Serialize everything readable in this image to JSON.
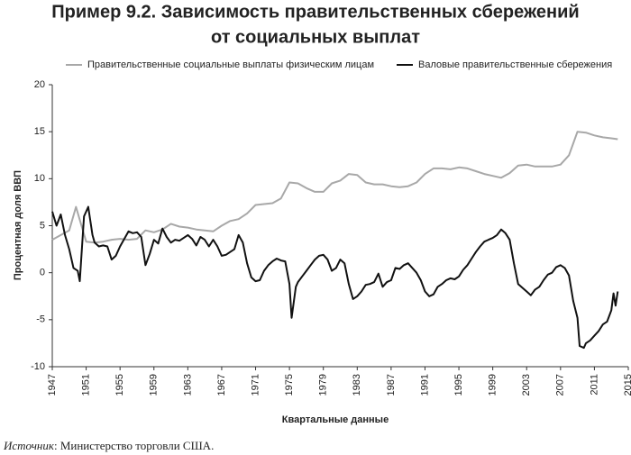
{
  "chart_data": {
    "type": "line",
    "title": [
      "Пример 9.2. Зависимость правительственных сбережений",
      "от социальных выплат"
    ],
    "ylabel": "Процентная доля ВВП",
    "xlabel": "Квартальные данные",
    "source_label": "Источник",
    "source_text": ": Министерство торговли США.",
    "xlim": [
      1947,
      2015
    ],
    "xticks": [
      1947,
      1951,
      1955,
      1959,
      1963,
      1967,
      1971,
      1975,
      1979,
      1983,
      1987,
      1991,
      1995,
      1999,
      2003,
      2007,
      2011,
      2015
    ],
    "ylim": [
      -10,
      20
    ],
    "yticks": [
      -10,
      -5,
      0,
      5,
      10,
      15,
      20
    ],
    "grid": false,
    "legend": "top",
    "series": [
      {
        "name": "Правительственные социальные выплаты физическим лицам",
        "color": "#a8a8a8",
        "x": [
          1947,
          1948,
          1949,
          1949.8,
          1951,
          1952,
          1953,
          1954,
          1955,
          1956,
          1957,
          1958,
          1959,
          1960,
          1961,
          1962,
          1963,
          1964,
          1965,
          1966,
          1967,
          1968,
          1969,
          1970,
          1971,
          1972,
          1973,
          1974,
          1975,
          1976,
          1977,
          1978,
          1979,
          1980,
          1981,
          1982,
          1983,
          1984,
          1985,
          1986,
          1987,
          1988,
          1989,
          1990,
          1991,
          1992,
          1993,
          1994,
          1995,
          1996,
          1997,
          1998,
          1999,
          2000,
          2001,
          2002,
          2003,
          2004,
          2005,
          2006,
          2007,
          2008,
          2009,
          2010,
          2011,
          2012,
          2013,
          2013.75
        ],
        "values": [
          3.5,
          4.0,
          4.5,
          7.0,
          3.3,
          3.2,
          3.3,
          3.5,
          3.6,
          3.5,
          3.6,
          4.5,
          4.3,
          4.6,
          5.2,
          4.9,
          4.8,
          4.6,
          4.5,
          4.4,
          5.0,
          5.5,
          5.7,
          6.3,
          7.2,
          7.3,
          7.4,
          7.9,
          9.6,
          9.5,
          9.0,
          8.6,
          8.6,
          9.5,
          9.8,
          10.5,
          10.4,
          9.6,
          9.4,
          9.4,
          9.2,
          9.1,
          9.2,
          9.6,
          10.5,
          11.1,
          11.1,
          11.0,
          11.2,
          11.1,
          10.8,
          10.5,
          10.3,
          10.1,
          10.6,
          11.4,
          11.5,
          11.3,
          11.3,
          11.3,
          11.5,
          12.5,
          15.0,
          14.9,
          14.6,
          14.4,
          14.3,
          14.2
        ]
      },
      {
        "name": "Валовые правительственные сбережения",
        "color": "#111111",
        "x": [
          1947,
          1947.5,
          1948,
          1948.5,
          1949,
          1949.5,
          1950,
          1950.25,
          1950.75,
          1951.25,
          1951.75,
          1952,
          1952.5,
          1953,
          1953.5,
          1954,
          1954.5,
          1955,
          1955.5,
          1956,
          1956.5,
          1957,
          1957.5,
          1958,
          1958.5,
          1959,
          1959.5,
          1960,
          1960.5,
          1961,
          1961.5,
          1962,
          1962.5,
          1963,
          1963.5,
          1964,
          1964.5,
          1965,
          1965.5,
          1966,
          1966.5,
          1967,
          1967.5,
          1968,
          1968.5,
          1969,
          1969.5,
          1970,
          1970.5,
          1971,
          1971.5,
          1972,
          1972.5,
          1973,
          1973.5,
          1974,
          1974.5,
          1975,
          1975.25,
          1975.75,
          1976,
          1976.5,
          1977,
          1977.5,
          1978,
          1978.5,
          1979,
          1979.5,
          1980,
          1980.5,
          1981,
          1981.5,
          1982,
          1982.5,
          1983,
          1983.5,
          1984,
          1984.5,
          1985,
          1985.5,
          1986,
          1986.5,
          1987,
          1987.5,
          1988,
          1988.5,
          1989,
          1989.5,
          1990,
          1990.5,
          1991,
          1991.5,
          1992,
          1992.5,
          1993,
          1993.5,
          1994,
          1994.5,
          1995,
          1995.5,
          1996,
          1996.5,
          1997,
          1997.5,
          1998,
          1998.5,
          1999,
          1999.5,
          2000,
          2000.5,
          2001,
          2001.5,
          2002,
          2002.5,
          2003,
          2003.5,
          2004,
          2004.5,
          2005,
          2005.5,
          2006,
          2006.5,
          2007,
          2007.5,
          2008,
          2008.5,
          2009,
          2009.25,
          2009.75,
          2010,
          2010.5,
          2011,
          2011.5,
          2012,
          2012.5,
          2013,
          2013.25,
          2013.5,
          2013.75
        ],
        "values": [
          6.5,
          5.0,
          6.2,
          4.0,
          2.5,
          0.5,
          0.2,
          -0.9,
          6.0,
          7.0,
          4.0,
          3.2,
          2.8,
          2.9,
          2.8,
          1.4,
          1.8,
          2.8,
          3.6,
          4.4,
          4.2,
          4.3,
          3.8,
          0.8,
          2.0,
          3.5,
          3.1,
          4.7,
          3.8,
          3.2,
          3.5,
          3.4,
          3.7,
          4.0,
          3.6,
          2.9,
          3.8,
          3.5,
          2.8,
          3.5,
          2.8,
          1.8,
          1.9,
          2.2,
          2.5,
          4.0,
          3.2,
          1.0,
          -0.5,
          -0.9,
          -0.8,
          0.2,
          0.8,
          1.2,
          1.5,
          1.3,
          1.2,
          -1.2,
          -4.8,
          -1.5,
          -1.0,
          -0.4,
          0.2,
          0.8,
          1.4,
          1.8,
          1.9,
          1.4,
          0.2,
          0.5,
          1.4,
          1.0,
          -1.2,
          -2.8,
          -2.5,
          -2.0,
          -1.3,
          -1.2,
          -1.0,
          -0.1,
          -1.5,
          -1.0,
          -0.8,
          0.5,
          0.4,
          0.8,
          1.0,
          0.5,
          0.0,
          -0.8,
          -2.0,
          -2.5,
          -2.3,
          -1.5,
          -1.2,
          -0.8,
          -0.6,
          -0.7,
          -0.4,
          0.3,
          0.8,
          1.5,
          2.2,
          2.8,
          3.3,
          3.5,
          3.7,
          4.0,
          4.6,
          4.2,
          3.5,
          1.0,
          -1.2,
          -1.6,
          -2.0,
          -2.4,
          -1.8,
          -1.5,
          -0.8,
          -0.2,
          0.0,
          0.6,
          0.8,
          0.5,
          -0.3,
          -3.0,
          -4.8,
          -7.8,
          -8.0,
          -7.5,
          -7.2,
          -6.7,
          -6.2,
          -5.5,
          -5.2,
          -4.0,
          -2.2,
          -3.5,
          -2.0
        ]
      }
    ]
  }
}
